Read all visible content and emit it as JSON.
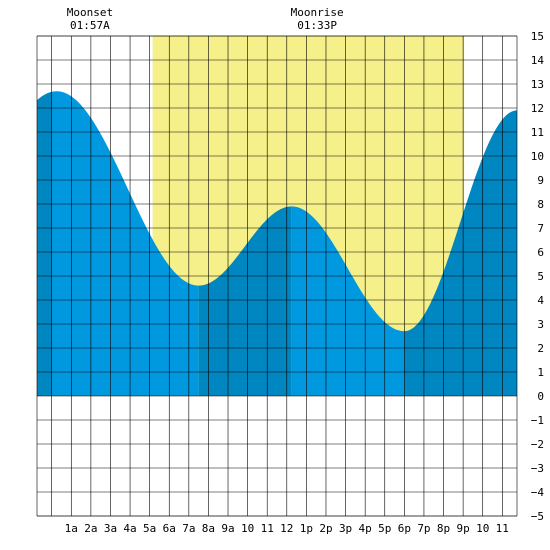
{
  "chart_data": {
    "type": "area",
    "title": "",
    "xlabel": "",
    "ylabel": "",
    "x_hours_range": [
      -0.75,
      23.75
    ],
    "ylim": [
      -5,
      15
    ],
    "y_ticks": [
      -5,
      -4,
      -3,
      -2,
      -1,
      0,
      1,
      2,
      3,
      4,
      5,
      6,
      7,
      8,
      9,
      10,
      11,
      12,
      13,
      14,
      15
    ],
    "x_ticks": [
      {
        "hour": 1,
        "label": "1a"
      },
      {
        "hour": 2,
        "label": "2a"
      },
      {
        "hour": 3,
        "label": "3a"
      },
      {
        "hour": 4,
        "label": "4a"
      },
      {
        "hour": 5,
        "label": "5a"
      },
      {
        "hour": 6,
        "label": "6a"
      },
      {
        "hour": 7,
        "label": "7a"
      },
      {
        "hour": 8,
        "label": "8a"
      },
      {
        "hour": 9,
        "label": "9a"
      },
      {
        "hour": 10,
        "label": "10"
      },
      {
        "hour": 11,
        "label": "11"
      },
      {
        "hour": 12,
        "label": "12"
      },
      {
        "hour": 13,
        "label": "1p"
      },
      {
        "hour": 14,
        "label": "2p"
      },
      {
        "hour": 15,
        "label": "3p"
      },
      {
        "hour": 16,
        "label": "4p"
      },
      {
        "hour": 17,
        "label": "5p"
      },
      {
        "hour": 18,
        "label": "6p"
      },
      {
        "hour": 19,
        "label": "7p"
      },
      {
        "hour": 20,
        "label": "8p"
      },
      {
        "hour": 21,
        "label": "9p"
      },
      {
        "hour": 22,
        "label": "10"
      },
      {
        "hour": 23,
        "label": "11"
      }
    ],
    "daylight": {
      "start_hour": 5.15,
      "end_hour": 21.05,
      "color": "#f5f08a"
    },
    "tide": {
      "extremes": [
        {
          "hour": 0.25,
          "height": 12.7
        },
        {
          "hour": 7.5,
          "height": 4.6
        },
        {
          "hour": 12.25,
          "height": 7.9
        },
        {
          "hour": 18.0,
          "height": 2.7
        },
        {
          "hour": 23.75,
          "height": 11.9
        }
      ],
      "phase_changes": [
        0.0,
        7.5,
        12.25,
        18.0
      ],
      "colors": {
        "rising": "#0086c0",
        "falling": "#0099e0"
      }
    },
    "annotations": [
      {
        "name": "moonset",
        "label": "Moonset",
        "time": "01:57A",
        "hour": 1.95
      },
      {
        "name": "moonrise",
        "label": "Moonrise",
        "time": "01:33P",
        "hour": 13.55
      }
    ],
    "grid": true
  }
}
